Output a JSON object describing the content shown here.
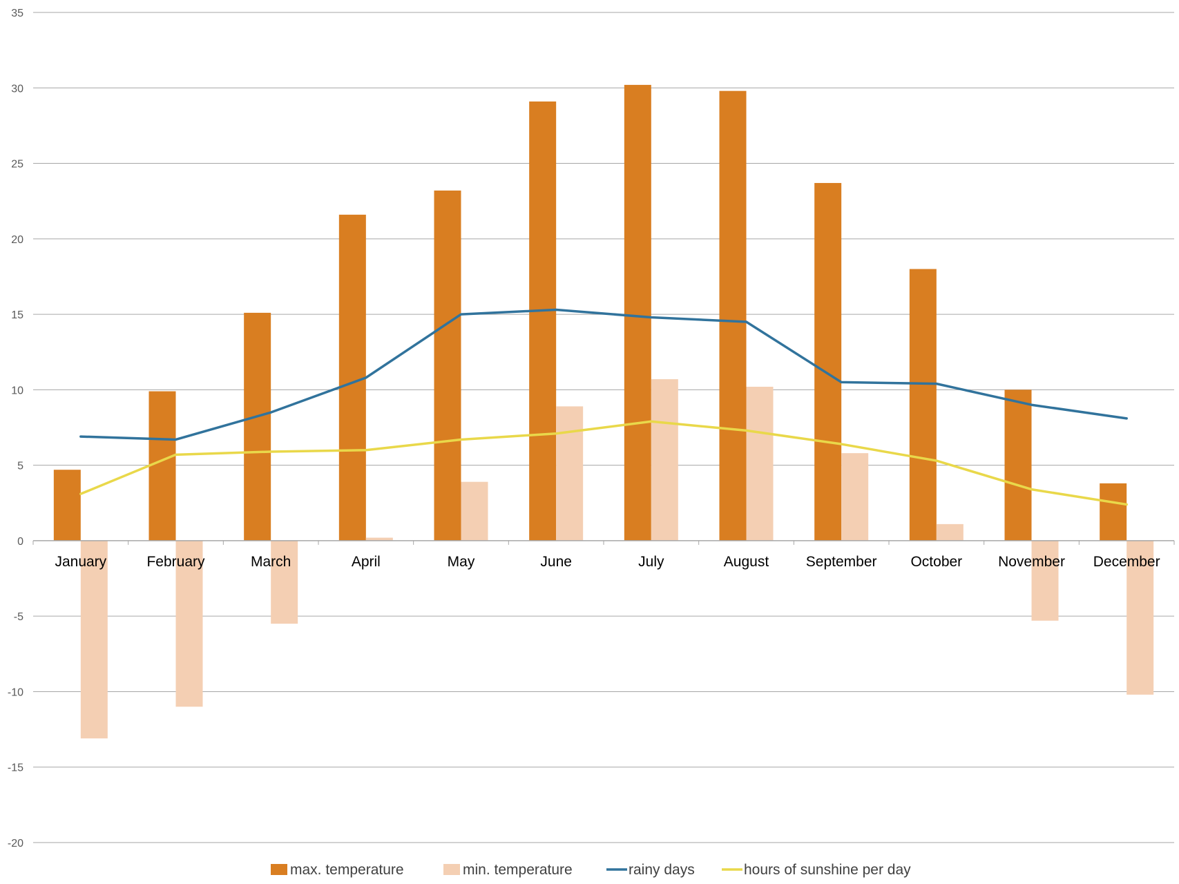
{
  "chart_data": {
    "type": "bar",
    "categories": [
      "January",
      "February",
      "March",
      "April",
      "May",
      "June",
      "July",
      "August",
      "September",
      "October",
      "November",
      "December"
    ],
    "ylim": [
      -20,
      35
    ],
    "yticks": [
      35,
      30,
      25,
      20,
      15,
      10,
      5,
      0,
      -5,
      -10,
      -15,
      -20
    ],
    "grid": true,
    "legend_position": "bottom",
    "series": [
      {
        "name": "max.  temperature",
        "kind": "bar",
        "color": "#D97E21",
        "values": [
          4.7,
          9.9,
          15.1,
          21.6,
          23.2,
          29.1,
          30.2,
          29.8,
          23.7,
          18.0,
          10.0,
          3.8
        ]
      },
      {
        "name": "min. temperature",
        "kind": "bar",
        "color": "#F4CFB3",
        "values": [
          -13.1,
          -11.0,
          -5.5,
          0.2,
          3.9,
          8.9,
          10.7,
          10.2,
          5.8,
          1.1,
          -5.3,
          -10.2
        ]
      },
      {
        "name": "rainy days",
        "kind": "line",
        "color": "#31739C",
        "values": [
          6.9,
          6.7,
          8.5,
          10.8,
          15.0,
          15.3,
          14.8,
          14.5,
          10.5,
          10.4,
          9.0,
          8.1
        ]
      },
      {
        "name": "hours of sunshine per day",
        "kind": "line",
        "color": "#E9D84A",
        "values": [
          3.1,
          5.7,
          5.9,
          6.0,
          6.7,
          7.1,
          7.9,
          7.3,
          6.4,
          5.3,
          3.4,
          2.4
        ]
      }
    ]
  }
}
